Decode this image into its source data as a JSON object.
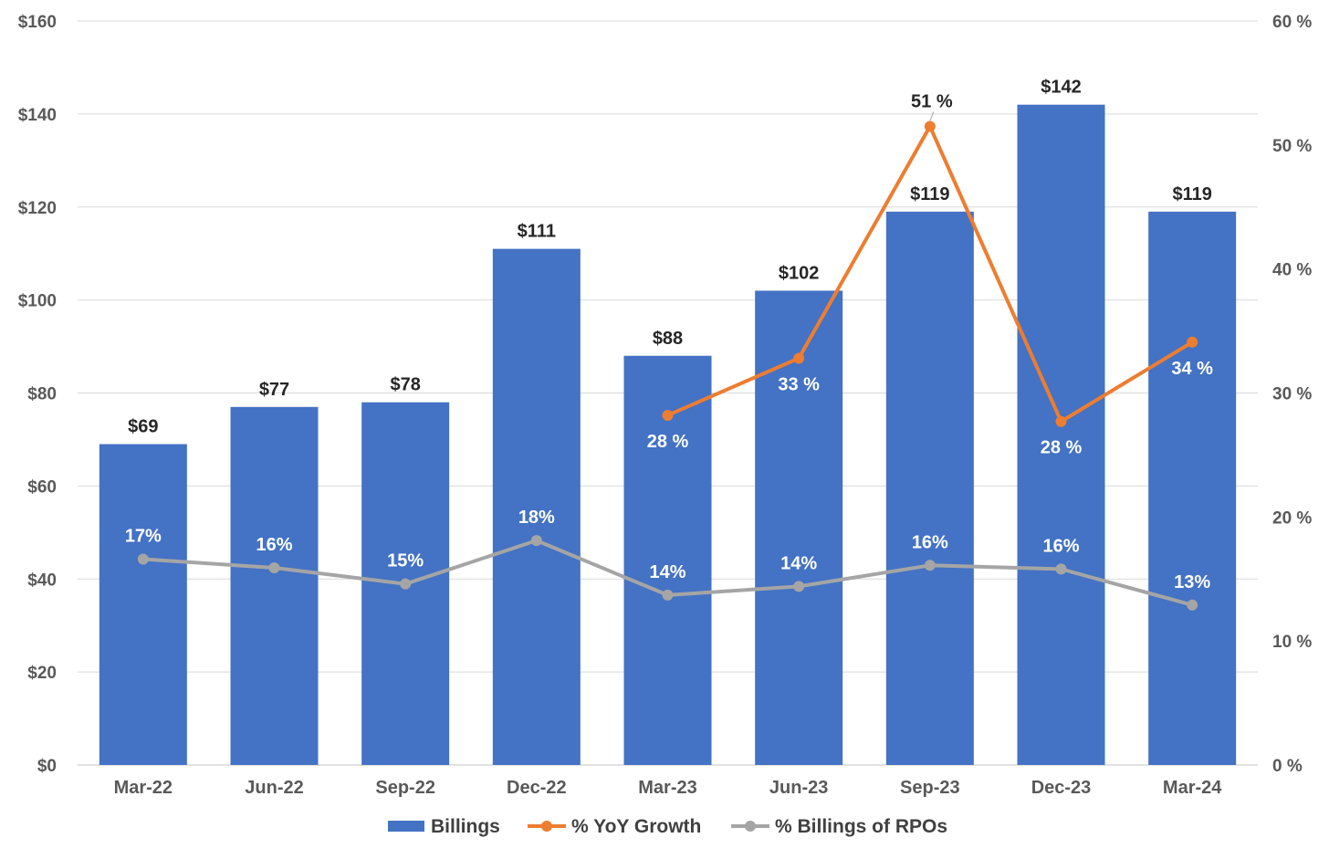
{
  "chart_data": {
    "type": "bar",
    "title": "",
    "xlabel": "",
    "ylabel": "",
    "categories": [
      "Mar-22",
      "Jun-22",
      "Sep-22",
      "Dec-22",
      "Mar-23",
      "Jun-23",
      "Sep-23",
      "Dec-23",
      "Mar-24"
    ],
    "ylim": [
      0,
      160
    ],
    "y2lim": [
      0,
      60
    ],
    "y_ticks": [
      "$0",
      "$20",
      "$40",
      "$60",
      "$80",
      "$100",
      "$120",
      "$140",
      "$160"
    ],
    "y2_ticks": [
      "0 %",
      "10 %",
      "20 %",
      "30 %",
      "40 %",
      "50 %",
      "60 %"
    ],
    "grid": true,
    "legend_position": "bottom-center",
    "series": [
      {
        "name": "Billings",
        "type": "bar",
        "axis": "left",
        "color": "#4472C4",
        "values": [
          69,
          77,
          78,
          111,
          88,
          102,
          119,
          142,
          119
        ],
        "labels": [
          "$69",
          "$77",
          "$78",
          "$111",
          "$88",
          "$102",
          "$119",
          "$142",
          "$119"
        ]
      },
      {
        "name": "% YoY Growth",
        "type": "line",
        "axis": "right",
        "color": "#ED7D31",
        "values": [
          null,
          null,
          null,
          null,
          28.2,
          32.8,
          51.5,
          27.7,
          34.1
        ],
        "labels": [
          "",
          "",
          "",
          "",
          "28 %",
          "33 %",
          "51 %",
          "28 %",
          "34 %"
        ]
      },
      {
        "name": "% Billings of RPOs",
        "type": "line",
        "axis": "right",
        "color": "#A5A5A5",
        "values": [
          16.6,
          15.9,
          14.6,
          18.1,
          13.7,
          14.4,
          16.1,
          15.8,
          12.9
        ],
        "labels": [
          "17%",
          "16%",
          "15%",
          "18%",
          "14%",
          "14%",
          "16%",
          "16%",
          "13%"
        ]
      }
    ]
  }
}
